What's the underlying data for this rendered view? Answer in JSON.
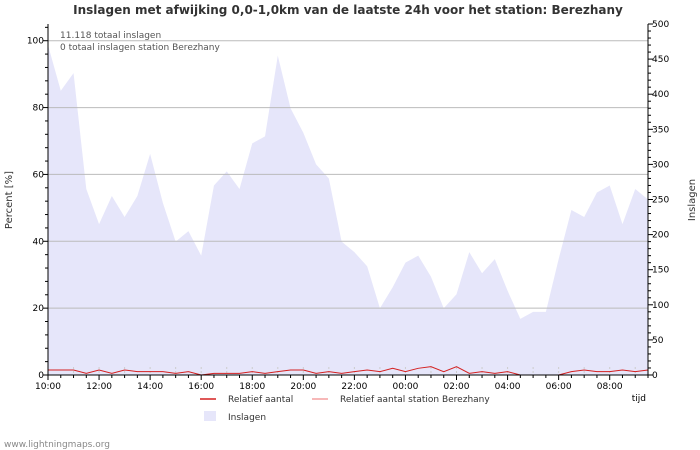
{
  "chart_data": {
    "type": "area",
    "title": "Inslagen met afwijking 0,0-1,0km van de laatste 24h voor het station: Berezhany",
    "ylabel_left": "Percent   [%]",
    "ylabel_right": "Inslagen",
    "xlabel": "tijd",
    "stats": [
      "11.118 totaal inslagen",
      "0 totaal inslagen station Berezhany"
    ],
    "left_axis": {
      "min": 0,
      "max": 105,
      "ticks": [
        0,
        20,
        40,
        60,
        80,
        100
      ]
    },
    "right_axis": {
      "min": 0,
      "max": 500,
      "ticks": [
        0,
        50,
        100,
        150,
        200,
        250,
        300,
        350,
        400,
        450,
        500
      ]
    },
    "x_axis": {
      "min": 0,
      "max": 23.5,
      "tick_labels": [
        "10:00",
        "12:00",
        "14:00",
        "16:00",
        "18:00",
        "20:00",
        "22:00",
        "00:00",
        "02:00",
        "04:00",
        "06:00",
        "08:00"
      ]
    },
    "series": [
      {
        "name": "Inslagen",
        "color": "#e6e6fa",
        "axis": "right",
        "x": [
          0,
          0.5,
          1,
          1.5,
          2,
          2.5,
          3,
          3.5,
          4,
          4.5,
          5,
          5.5,
          6,
          6.5,
          7,
          7.5,
          8,
          8.5,
          9,
          9.5,
          10,
          10.5,
          11,
          11.5,
          12,
          12.5,
          13,
          13.5,
          14,
          14.5,
          15,
          15.5,
          16,
          16.5,
          17,
          17.5,
          18,
          18.5,
          19,
          19.5,
          20,
          20.5,
          21,
          21.5,
          22,
          22.5,
          23,
          23.5
        ],
        "values": [
          470,
          405,
          430,
          265,
          215,
          255,
          225,
          255,
          315,
          245,
          190,
          205,
          170,
          270,
          290,
          265,
          330,
          340,
          455,
          380,
          345,
          300,
          280,
          190,
          175,
          155,
          95,
          125,
          160,
          170,
          140,
          95,
          115,
          175,
          145,
          165,
          120,
          80,
          90,
          90,
          165,
          235,
          225,
          260,
          270,
          215,
          265,
          250
        ]
      },
      {
        "name": "Relatief aantal",
        "color": "#d42020",
        "axis": "left",
        "x": [
          0,
          0.5,
          1,
          1.5,
          2,
          2.5,
          3,
          3.5,
          4,
          4.5,
          5,
          5.5,
          6,
          6.5,
          7,
          7.5,
          8,
          8.5,
          9,
          9.5,
          10,
          10.5,
          11,
          11.5,
          12,
          12.5,
          13,
          13.5,
          14,
          14.5,
          15,
          15.5,
          16,
          16.5,
          17,
          17.5,
          18,
          18.5,
          19,
          19.5,
          20,
          20.5,
          21,
          21.5,
          22,
          22.5,
          23,
          23.5
        ],
        "values": [
          1.5,
          1.5,
          1.5,
          0.5,
          1.5,
          0.5,
          1.5,
          1,
          1,
          1,
          0.5,
          1,
          0,
          0.5,
          0.5,
          0.5,
          1,
          0.5,
          1,
          1.5,
          1.5,
          0.5,
          1,
          0.5,
          1,
          1.5,
          1,
          2,
          1,
          2,
          2.5,
          1,
          2.5,
          0.5,
          1,
          0.5,
          1,
          0,
          0,
          0,
          0,
          1,
          1.5,
          1,
          1,
          1.5,
          1,
          1.5
        ]
      },
      {
        "name": "Relatief aantal station Berezhany",
        "color": "#f4a0a0",
        "axis": "left",
        "x": [],
        "values": []
      }
    ],
    "legend": [
      {
        "label": "Relatief aantal",
        "color": "#d42020",
        "kind": "line"
      },
      {
        "label": "Relatief aantal station Berezhany",
        "color": "#f4a0a0",
        "kind": "line"
      },
      {
        "label": "Inslagen",
        "color": "#e6e6fa",
        "kind": "box"
      }
    ]
  },
  "footer": "www.lightningmaps.org"
}
